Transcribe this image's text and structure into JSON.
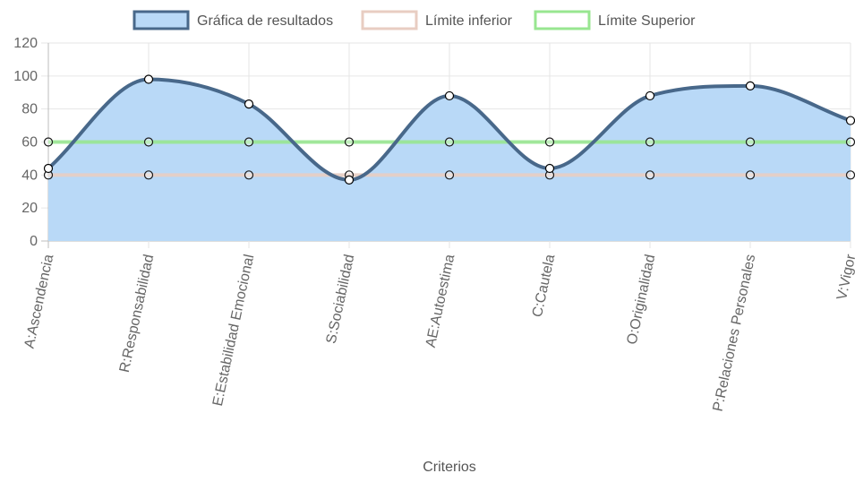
{
  "chart_data": {
    "type": "line",
    "title": "",
    "xlabel": "Criterios",
    "ylabel": "",
    "ylim": [
      0,
      120
    ],
    "yticks": [
      "0",
      "20",
      "40",
      "60",
      "80",
      "100",
      "120"
    ],
    "grid": true,
    "legend_position": "top",
    "categories": [
      "A:Ascendencia",
      "R:Responsabilidad",
      "E:Estabilidad Emocional",
      "S:Sociabilidad",
      "AE:Autoestima",
      "C:Cautela",
      "O:Originalidad",
      "P:Relaciones Personales",
      "V:Vigor"
    ],
    "series": [
      {
        "name": "Gráfica de resultados",
        "values": [
          44,
          98,
          83,
          37,
          88,
          44,
          88,
          94,
          73
        ],
        "stroke": "#48688a",
        "fill": "#b9d9f7",
        "filled": true,
        "smooth": true
      },
      {
        "name": "Límite inferior",
        "values": [
          40,
          40,
          40,
          40,
          40,
          40,
          40,
          40,
          40
        ],
        "stroke": "#e8cdc2",
        "fill": "#e8cdc2",
        "filled": false,
        "smooth": false
      },
      {
        "name": "Límite Superior",
        "values": [
          60,
          60,
          60,
          60,
          60,
          60,
          60,
          60,
          60
        ],
        "stroke": "#98e690",
        "fill": "#98e690",
        "filled": false,
        "smooth": false
      }
    ]
  }
}
